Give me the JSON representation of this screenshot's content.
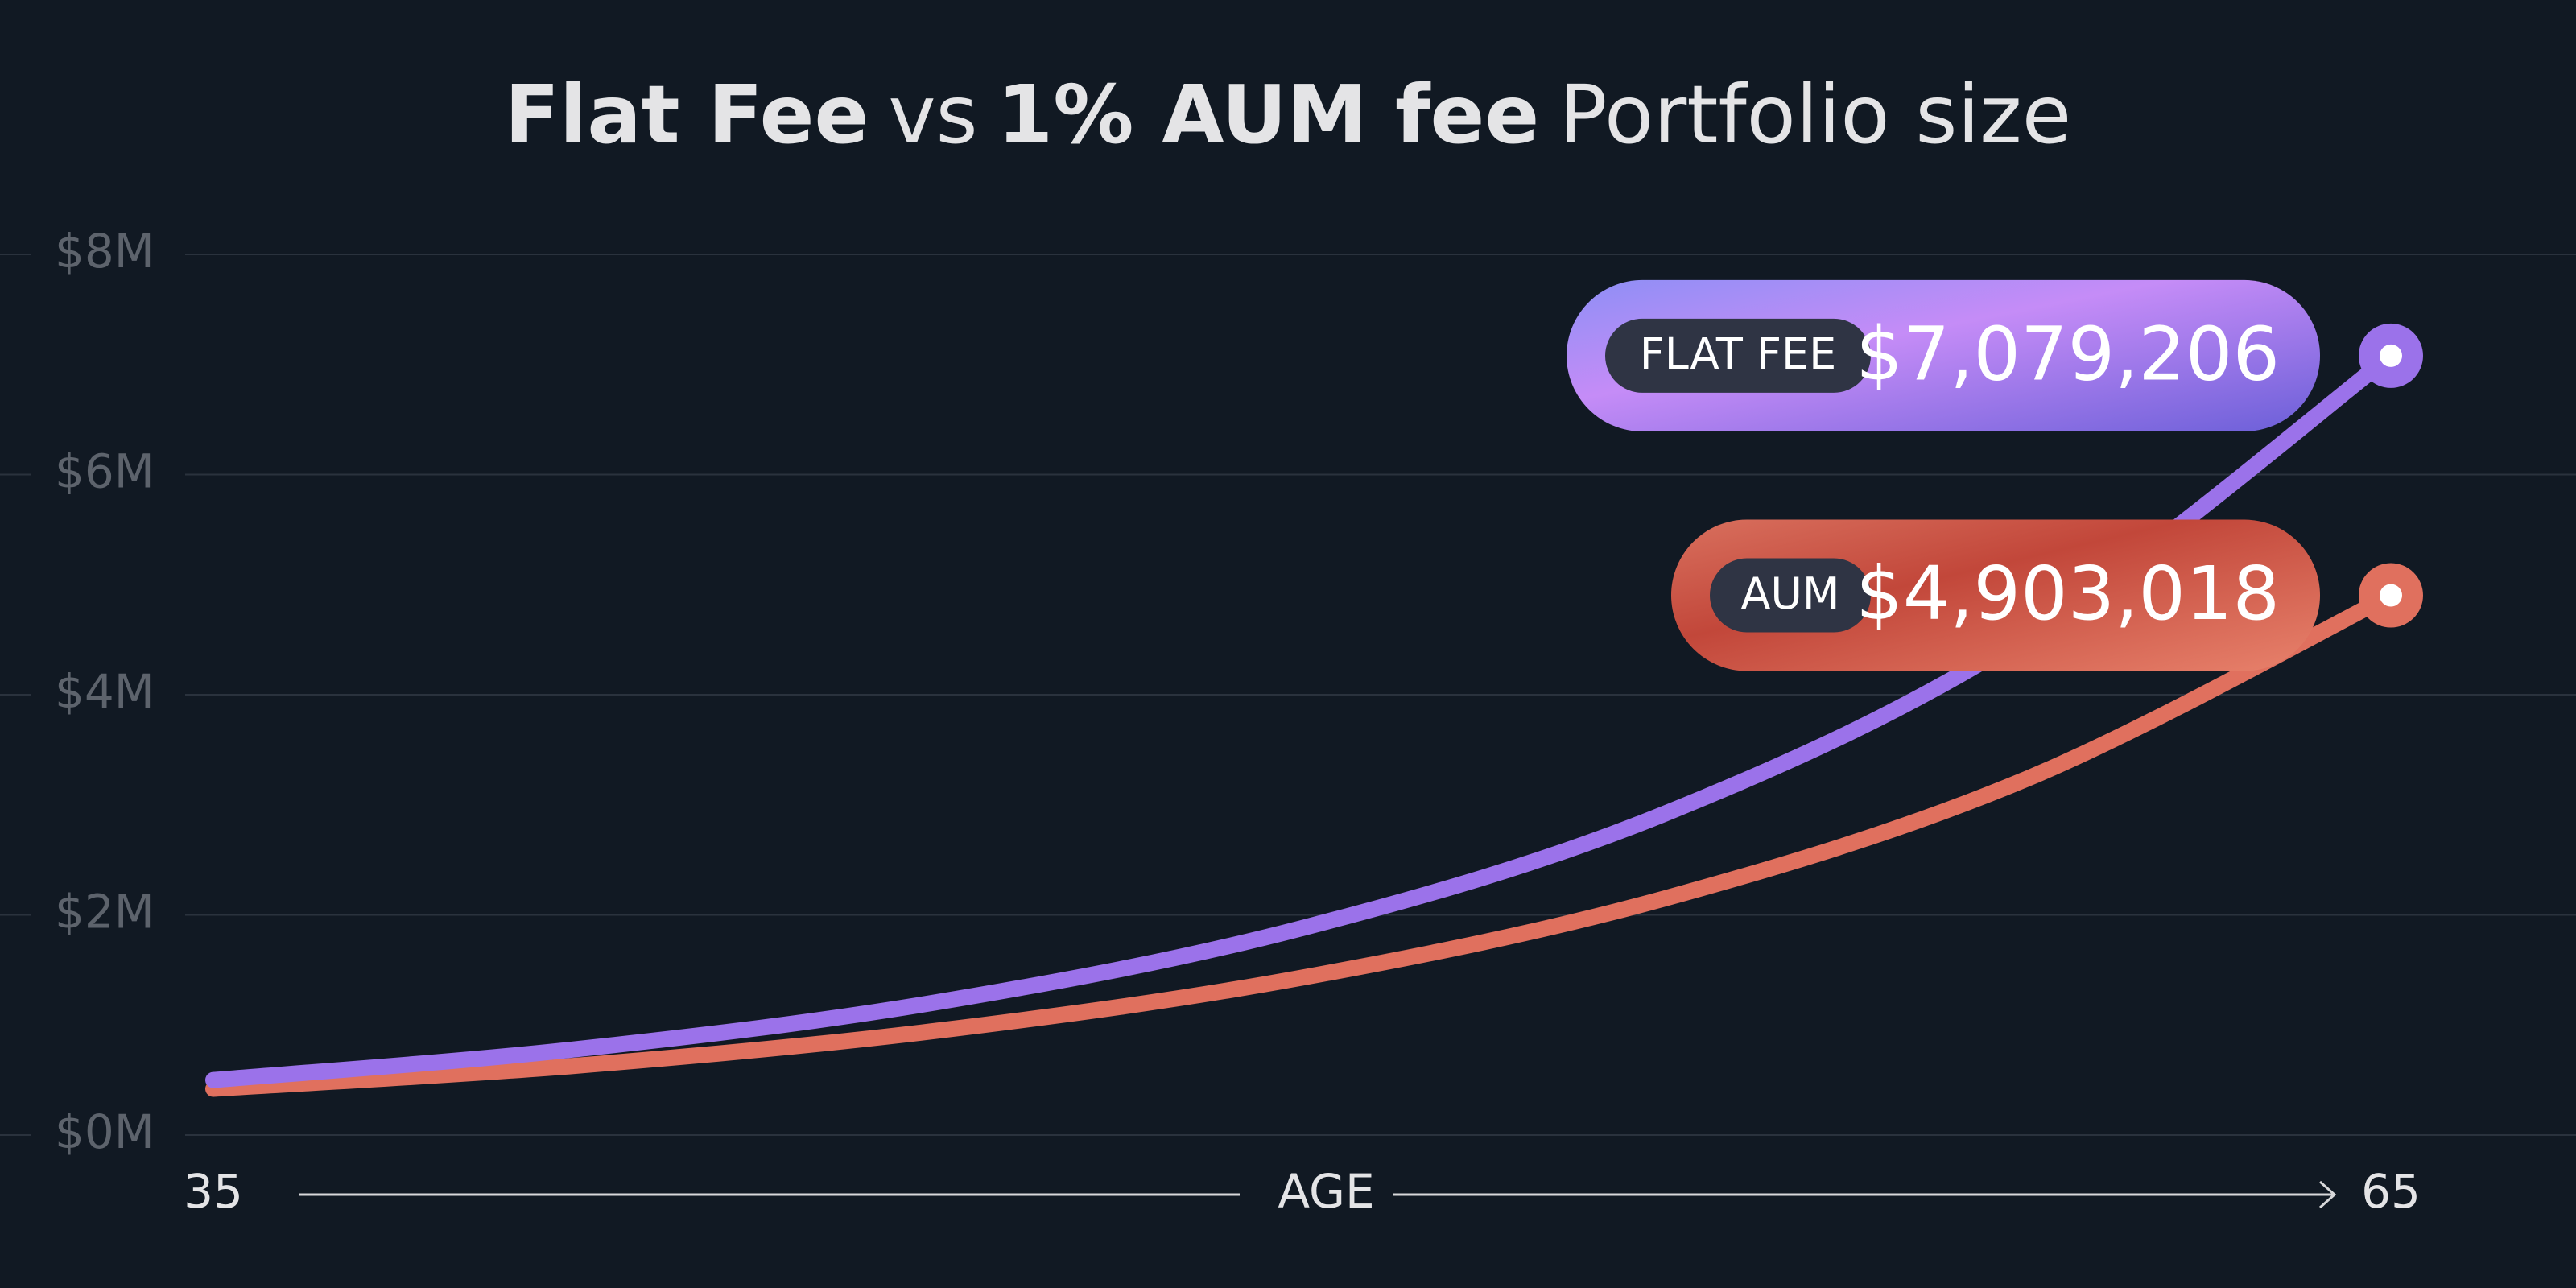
{
  "chart_data": {
    "type": "line",
    "title": [
      {
        "text": "Flat Fee",
        "bold": true
      },
      {
        "text": "vs",
        "bold": false
      },
      {
        "text": "1% AUM fee",
        "bold": true
      },
      {
        "text": "Portfolio size",
        "bold": false
      }
    ],
    "x_label": "AGE",
    "x": [
      35,
      40,
      45,
      50,
      55,
      60,
      65
    ],
    "xlim": [
      35,
      65
    ],
    "xticks": [
      35,
      65
    ],
    "ylim": [
      0,
      8000000
    ],
    "yticks": [
      {
        "value": 0,
        "label": "$0M"
      },
      {
        "value": 2000000,
        "label": "$2M"
      },
      {
        "value": 4000000,
        "label": "$4M"
      },
      {
        "value": 6000000,
        "label": "$6M"
      },
      {
        "value": 8000000,
        "label": "$8M"
      }
    ],
    "grid": true,
    "series": [
      {
        "name": "FLAT FEE",
        "color": "#9b72ea",
        "values": [
          500000,
          780000,
          1210000,
          1880000,
          2920000,
          4550000,
          7079206
        ],
        "value_labels": [
          null,
          null,
          null,
          null,
          null,
          null,
          "$7,079,206"
        ]
      },
      {
        "name": "AUM",
        "color": "#e0705e",
        "values": [
          420000,
          630000,
          950000,
          1430000,
          2150000,
          3240000,
          4903018
        ],
        "value_labels": [
          null,
          null,
          null,
          null,
          null,
          null,
          "$4,903,018"
        ]
      }
    ]
  }
}
